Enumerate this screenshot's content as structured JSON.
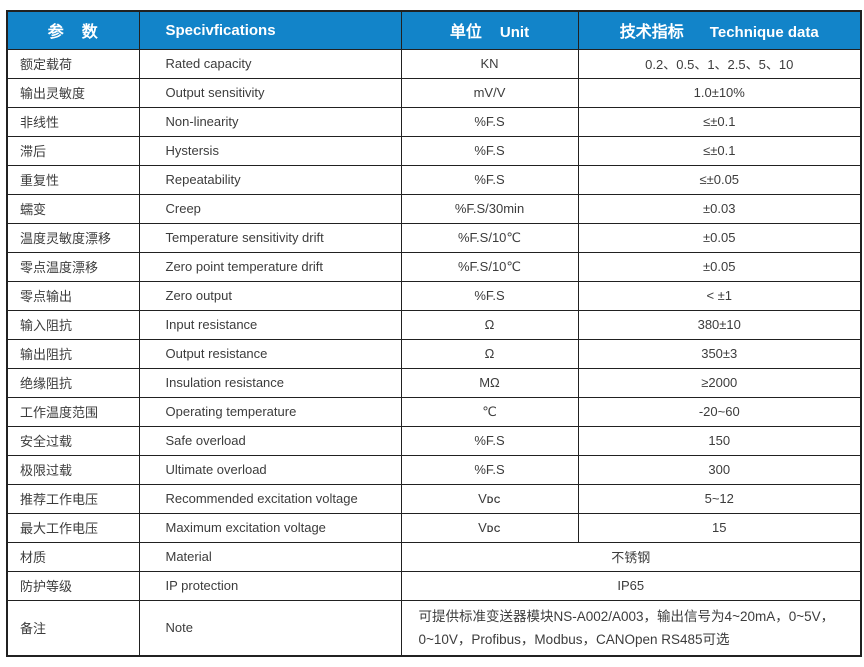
{
  "colors": {
    "header_bg": "#1284c9",
    "header_text": "#ffffff",
    "border": "#212121",
    "text": "#3c3c3c",
    "background": "#ffffff"
  },
  "table": {
    "header": {
      "param_zh": "参　数",
      "spec": "Specivfications",
      "unit_zh": "单位",
      "unit_en": "Unit",
      "tech_zh": "技术指标",
      "tech_en": "Technique data"
    },
    "rows": [
      {
        "param": "额定载荷",
        "spec": "Rated capacity",
        "unit": "KN",
        "value": "0.2、0.5、1、2.5、5、10"
      },
      {
        "param": "输出灵敏度",
        "spec": "Output sensitivity",
        "unit": "mV/V",
        "value": "1.0±10%"
      },
      {
        "param": "非线性",
        "spec": "Non-linearity",
        "unit": "%F.S",
        "value": "≤±0.1"
      },
      {
        "param": "滞后",
        "spec": "Hystersis",
        "unit": "%F.S",
        "value": "≤±0.1"
      },
      {
        "param": "重复性",
        "spec": "Repeatability",
        "unit": "%F.S",
        "value": "≤±0.05"
      },
      {
        "param": "蠕变",
        "spec": "Creep",
        "unit": "%F.S/30min",
        "value": "±0.03"
      },
      {
        "param": "温度灵敏度漂移",
        "spec": "Temperature sensitivity drift",
        "unit": "%F.S/10℃",
        "value": "±0.05"
      },
      {
        "param": "零点温度漂移",
        "spec": "Zero point temperature drift",
        "unit": "%F.S/10℃",
        "value": "±0.05"
      },
      {
        "param": "零点输出",
        "spec": "Zero output",
        "unit": "%F.S",
        "value": "< ±1"
      },
      {
        "param": "输入阻抗",
        "spec": "Input resistance",
        "unit": "Ω",
        "value": "380±10"
      },
      {
        "param": "输出阻抗",
        "spec": "Output resistance",
        "unit": "Ω",
        "value": "350±3"
      },
      {
        "param": "绝缘阻抗",
        "spec": "Insulation resistance",
        "unit": "MΩ",
        "value": "≥2000"
      },
      {
        "param": "工作温度范围",
        "spec": "Operating temperature",
        "unit": "℃",
        "value": "-20~60"
      },
      {
        "param": "安全过载",
        "spec": "Safe overload",
        "unit": "%F.S",
        "value": "150"
      },
      {
        "param": "极限过载",
        "spec": "Ultimate overload",
        "unit": "%F.S",
        "value": "300"
      },
      {
        "param": "推荐工作电压",
        "spec": "Recommended excitation voltage",
        "unit": "V",
        "unit_sub": "DC",
        "value": "5~12"
      },
      {
        "param": "最大工作电压",
        "spec": "Maximum excitation voltage",
        "unit": "V",
        "unit_sub": "DC",
        "value": "15"
      },
      {
        "param": "材质",
        "spec": "Material",
        "merged_value": "不锈钢"
      },
      {
        "param": "防护等级",
        "spec": "IP protection",
        "merged_value": "IP65"
      },
      {
        "param": "备注",
        "spec": "Note",
        "note_lines": [
          "可提供标准变送器模块NS-A002/A003，输出信号为4~20mA，0~5V，",
          "0~10V，Profibus，Modbus，CANOpen  RS485可选"
        ]
      }
    ]
  }
}
